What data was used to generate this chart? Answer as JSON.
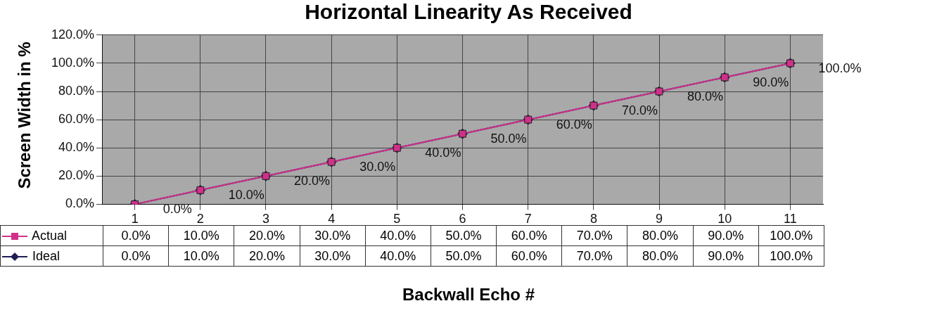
{
  "chart_data": {
    "type": "line",
    "title": "Horizontal Linearity As Received",
    "xlabel": "Backwall Echo #",
    "ylabel": "Screen Width in %",
    "categories": [
      "1",
      "2",
      "3",
      "4",
      "5",
      "6",
      "7",
      "8",
      "9",
      "10",
      "11"
    ],
    "series": [
      {
        "name": "Actual",
        "color": "#d0308a",
        "marker": "square",
        "values": [
          0,
          10,
          20,
          30,
          40,
          50,
          60,
          70,
          80,
          90,
          100
        ],
        "value_labels": [
          "0.0%",
          "10.0%",
          "20.0%",
          "30.0%",
          "40.0%",
          "50.0%",
          "60.0%",
          "70.0%",
          "80.0%",
          "90.0%",
          "100.0%"
        ]
      },
      {
        "name": "Ideal",
        "color": "#1e1e55",
        "marker": "diamond",
        "values": [
          0,
          10,
          20,
          30,
          40,
          50,
          60,
          70,
          80,
          90,
          100
        ],
        "value_labels": [
          "0.0%",
          "10.0%",
          "20.0%",
          "30.0%",
          "40.0%",
          "50.0%",
          "60.0%",
          "70.0%",
          "80.0%",
          "90.0%",
          "100.0%"
        ]
      }
    ],
    "ylim": [
      0,
      120
    ],
    "yticks": [
      {
        "value": 0,
        "label": "0.0%"
      },
      {
        "value": 20,
        "label": "20.0%"
      },
      {
        "value": 40,
        "label": "40.0%"
      },
      {
        "value": 60,
        "label": "60.0%"
      },
      {
        "value": 80,
        "label": "80.0%"
      },
      {
        "value": 100,
        "label": "100.0%"
      },
      {
        "value": 120,
        "label": "120.0%"
      }
    ],
    "grid": true,
    "legend": "bottom"
  }
}
